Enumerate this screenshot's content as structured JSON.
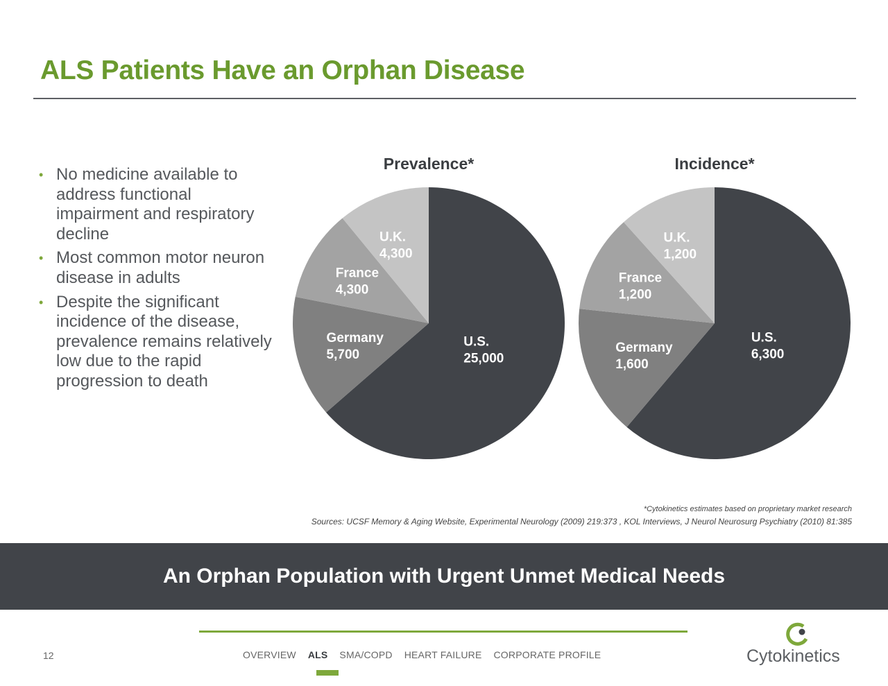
{
  "page": {
    "title": "ALS Patients Have an Orphan Disease",
    "bullets": [
      "No medicine available to address functional impairment and respiratory decline",
      "Most common motor neuron disease in adults",
      "Despite the significant incidence of the disease, prevalence remains relatively low due to the rapid progression to death"
    ],
    "footnote": "*Cytokinetics estimates based on proprietary market research",
    "sources": "Sources: UCSF Memory & Aging Website, Experimental Neurology (2009) 219:373 , KOL Interviews, J Neurol Neurosurg Psychiatry (2010) 81:385",
    "banner": "An Orphan Population with Urgent Unmet Medical Needs",
    "page_number": "12",
    "nav": [
      "OVERVIEW",
      "ALS",
      "SMA/COPD",
      "HEART FAILURE",
      "CORPORATE PROFILE"
    ],
    "nav_active": "ALS",
    "logo_text": "Cytokinetics",
    "logo_icon": "cytokinetics-logo-icon"
  },
  "colors": {
    "accent_green": "#6a9a2e",
    "dark_gray": "#414449",
    "slice_us": "#414449",
    "slice_germany": "#808080",
    "slice_france": "#a3a3a3",
    "slice_uk": "#c4c4c4"
  },
  "chart_data": [
    {
      "type": "pie",
      "title": "Prevalence*",
      "categories": [
        "U.S.",
        "Germany",
        "France",
        "U.K."
      ],
      "values": [
        25000,
        5700,
        4300,
        4300
      ],
      "labels": [
        "25,000",
        "5,700",
        "4,300",
        "4,300"
      ]
    },
    {
      "type": "pie",
      "title": "Incidence*",
      "categories": [
        "U.S.",
        "Germany",
        "France",
        "U.K."
      ],
      "values": [
        6300,
        1600,
        1200,
        1200
      ],
      "labels": [
        "6,300",
        "1,600",
        "1,200",
        "1,200"
      ]
    }
  ]
}
